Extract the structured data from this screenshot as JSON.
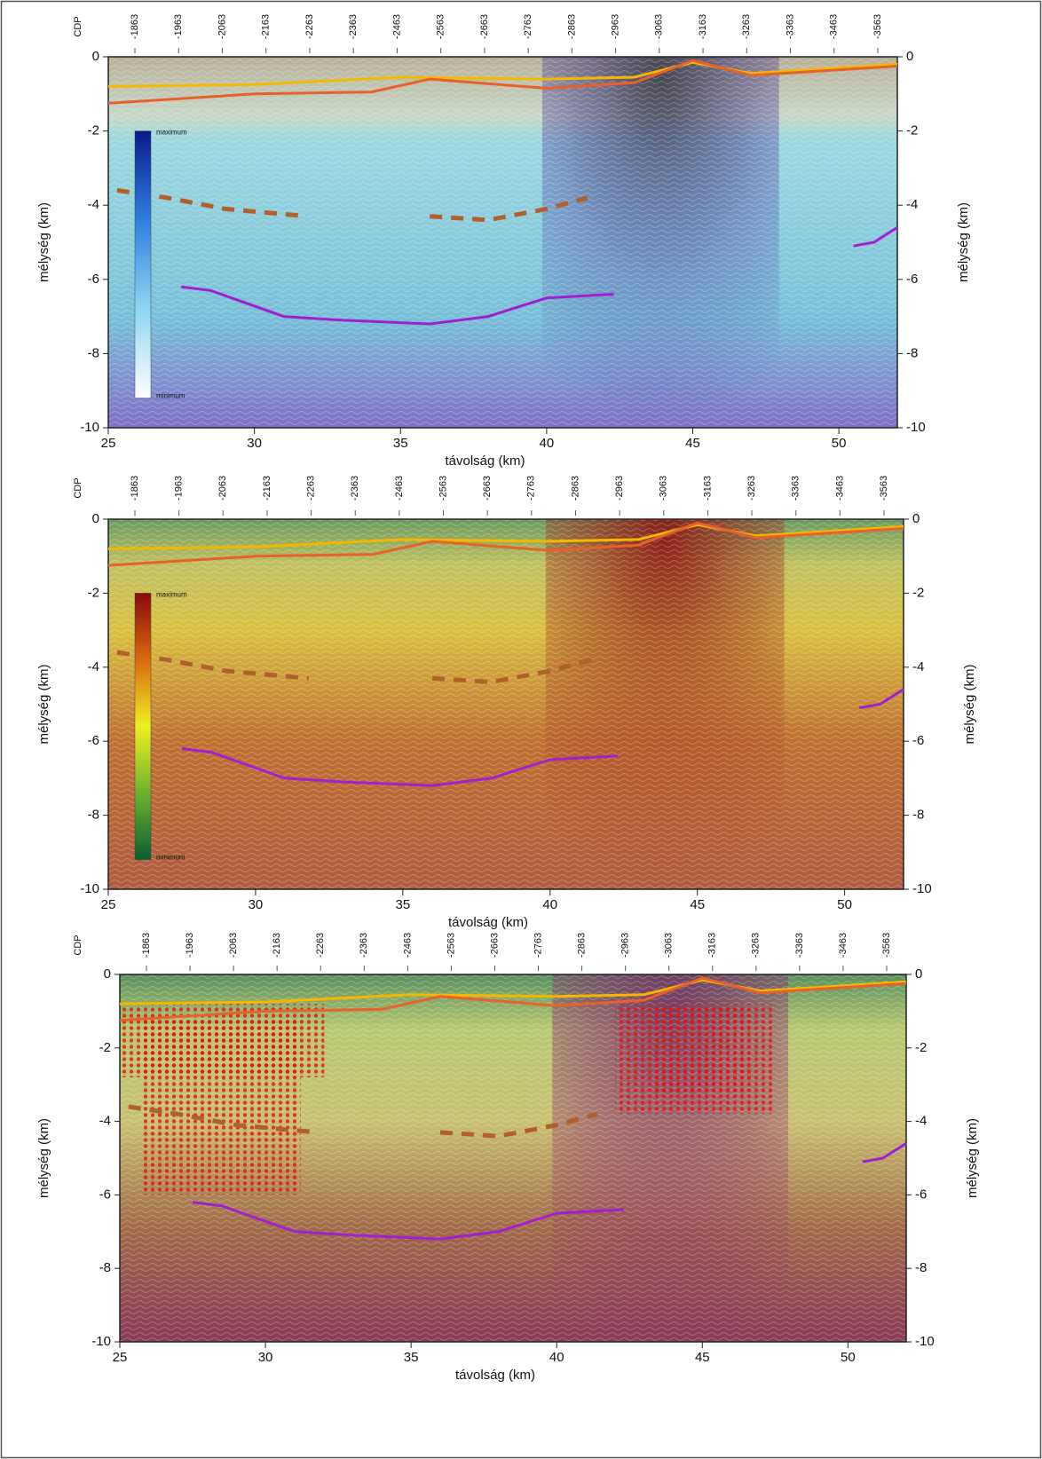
{
  "chart_data": [
    {
      "type": "section",
      "cdp_title": "CDP",
      "cdp_labels": [
        "-1863",
        "-1963",
        "-2063",
        "-2163",
        "-2263",
        "-2363",
        "-2463",
        "-2563",
        "-2663",
        "-2763",
        "-2863",
        "-2963",
        "-3063",
        "-3163",
        "-3263",
        "-3363",
        "-3463",
        "-3563"
      ],
      "xlabel": "távolság (km)",
      "ylabel": "mélység (km)",
      "y2label": "mélység (km)",
      "xlim": [
        25,
        52
      ],
      "ylim": [
        -10,
        0
      ],
      "xticks": [
        25,
        30,
        35,
        40,
        45,
        50
      ],
      "yticks": [
        -10,
        -8,
        -6,
        -4,
        -2,
        0
      ],
      "colorbar": {
        "max_label": "maximum",
        "min_label": "minimum",
        "colors": [
          "#0a1a8a",
          "#2f7fe0",
          "#8fd6f0",
          "#ffffff"
        ]
      },
      "background": "resistivity",
      "series": [
        {
          "color": "#f5b800",
          "style": "solid",
          "x": [
            25,
            30,
            35,
            40,
            43,
            45,
            47,
            52
          ],
          "values": [
            -0.8,
            -0.75,
            -0.55,
            -0.6,
            -0.55,
            -0.15,
            -0.45,
            -0.2
          ]
        },
        {
          "color": "#e8602a",
          "style": "solid",
          "x": [
            25,
            30,
            34,
            36,
            40,
            43,
            45,
            47,
            52
          ],
          "values": [
            -1.25,
            -1.0,
            -0.95,
            -0.6,
            -0.85,
            -0.7,
            -0.1,
            -0.5,
            -0.25
          ]
        },
        {
          "color": "#a020d0",
          "style": "solid",
          "x": [
            27.5,
            28.5,
            31,
            33,
            36,
            38,
            40,
            42.3,
            null,
            50.5,
            51.2,
            52
          ],
          "values": [
            -6.2,
            -6.3,
            -7.0,
            -7.1,
            -7.2,
            -7.0,
            -6.5,
            -6.4,
            null,
            -5.1,
            -5.0,
            -4.6
          ]
        },
        {
          "color": "#b0602a",
          "style": "dashed",
          "x": [
            25.3,
            27,
            29,
            31.8,
            null,
            36,
            38,
            40,
            41.4
          ],
          "values": [
            -3.6,
            -3.8,
            -4.1,
            -4.3,
            null,
            -4.3,
            -4.4,
            -4.1,
            -3.8
          ]
        }
      ]
    },
    {
      "type": "section",
      "cdp_title": "CDP",
      "cdp_labels": [
        "-1863",
        "-1963",
        "-2063",
        "-2163",
        "-2263",
        "-2363",
        "-2463",
        "-2563",
        "-2663",
        "-2763",
        "-2863",
        "-2963",
        "-3063",
        "-3163",
        "-3263",
        "-3363",
        "-3463",
        "-3563"
      ],
      "xlabel": "távolság (km)",
      "ylabel": "mélység (km)",
      "y2label": "mélység (km)",
      "xlim": [
        25,
        52
      ],
      "ylim": [
        -10,
        0
      ],
      "xticks": [
        25,
        30,
        35,
        40,
        45,
        50
      ],
      "yticks": [
        -10,
        -8,
        -6,
        -4,
        -2,
        0
      ],
      "colorbar": {
        "max_label": "maximum",
        "min_label": "minimum",
        "colors": [
          "#8a0a0a",
          "#d86a10",
          "#f0f020",
          "#70b030",
          "#0a6030"
        ]
      },
      "background": "velocity",
      "series": [
        {
          "color": "#f5b800",
          "style": "solid",
          "x": [
            25,
            30,
            35,
            40,
            43,
            45,
            47,
            52
          ],
          "values": [
            -0.8,
            -0.75,
            -0.55,
            -0.6,
            -0.55,
            -0.15,
            -0.45,
            -0.2
          ]
        },
        {
          "color": "#e8602a",
          "style": "solid",
          "x": [
            25,
            30,
            34,
            36,
            40,
            43,
            45,
            47,
            52
          ],
          "values": [
            -1.25,
            -1.0,
            -0.95,
            -0.6,
            -0.85,
            -0.7,
            -0.1,
            -0.5,
            -0.25
          ]
        },
        {
          "color": "#a020d0",
          "style": "solid",
          "x": [
            27.5,
            28.5,
            31,
            33,
            36,
            38,
            40,
            42.3,
            null,
            50.5,
            51.2,
            52
          ],
          "values": [
            -6.2,
            -6.3,
            -7.0,
            -7.1,
            -7.2,
            -7.0,
            -6.5,
            -6.4,
            null,
            -5.1,
            -5.0,
            -4.6
          ]
        },
        {
          "color": "#b0602a",
          "style": "dashed",
          "x": [
            25.3,
            27,
            29,
            31.8,
            null,
            36,
            38,
            40,
            41.4
          ],
          "values": [
            -3.6,
            -3.8,
            -4.1,
            -4.3,
            null,
            -4.3,
            -4.4,
            -4.1,
            -3.8
          ]
        }
      ]
    },
    {
      "type": "section",
      "cdp_title": "CDP",
      "cdp_labels": [
        "-1863",
        "-1963",
        "-2063",
        "-2163",
        "-2263",
        "-2363",
        "-2463",
        "-2563",
        "-2663",
        "-2763",
        "-2863",
        "-2963",
        "-3063",
        "-3163",
        "-3263",
        "-3363",
        "-3463",
        "-3563"
      ],
      "xlabel": "távolság (km)",
      "ylabel": "mélység (km)",
      "y2label": "mélység (km)",
      "xlim": [
        25,
        52
      ],
      "ylim": [
        -10,
        0
      ],
      "xticks": [
        25,
        30,
        35,
        40,
        45,
        50
      ],
      "yticks": [
        -10,
        -8,
        -6,
        -4,
        -2,
        0
      ],
      "background": "combined",
      "series": [
        {
          "color": "#f5b800",
          "style": "solid",
          "x": [
            25,
            30,
            35,
            40,
            43,
            45,
            47,
            52
          ],
          "values": [
            -0.8,
            -0.75,
            -0.55,
            -0.6,
            -0.55,
            -0.15,
            -0.45,
            -0.2
          ]
        },
        {
          "color": "#e8602a",
          "style": "solid",
          "x": [
            25,
            30,
            34,
            36,
            40,
            43,
            45,
            47,
            52
          ],
          "values": [
            -1.25,
            -1.0,
            -0.95,
            -0.6,
            -0.85,
            -0.7,
            -0.1,
            -0.5,
            -0.25
          ]
        },
        {
          "color": "#a020d0",
          "style": "solid",
          "x": [
            27.5,
            28.5,
            31,
            33,
            36,
            38,
            40,
            42.3,
            null,
            50.5,
            51.2,
            52
          ],
          "values": [
            -6.2,
            -6.3,
            -7.0,
            -7.1,
            -7.2,
            -7.0,
            -6.5,
            -6.4,
            null,
            -5.1,
            -5.0,
            -4.6
          ]
        },
        {
          "color": "#b0602a",
          "style": "dashed",
          "x": [
            25.3,
            27,
            29,
            31.8,
            null,
            36,
            38,
            40,
            41.4
          ],
          "values": [
            -3.6,
            -3.8,
            -4.1,
            -4.3,
            null,
            -4.3,
            -4.4,
            -4.1,
            -3.8
          ]
        }
      ]
    }
  ]
}
